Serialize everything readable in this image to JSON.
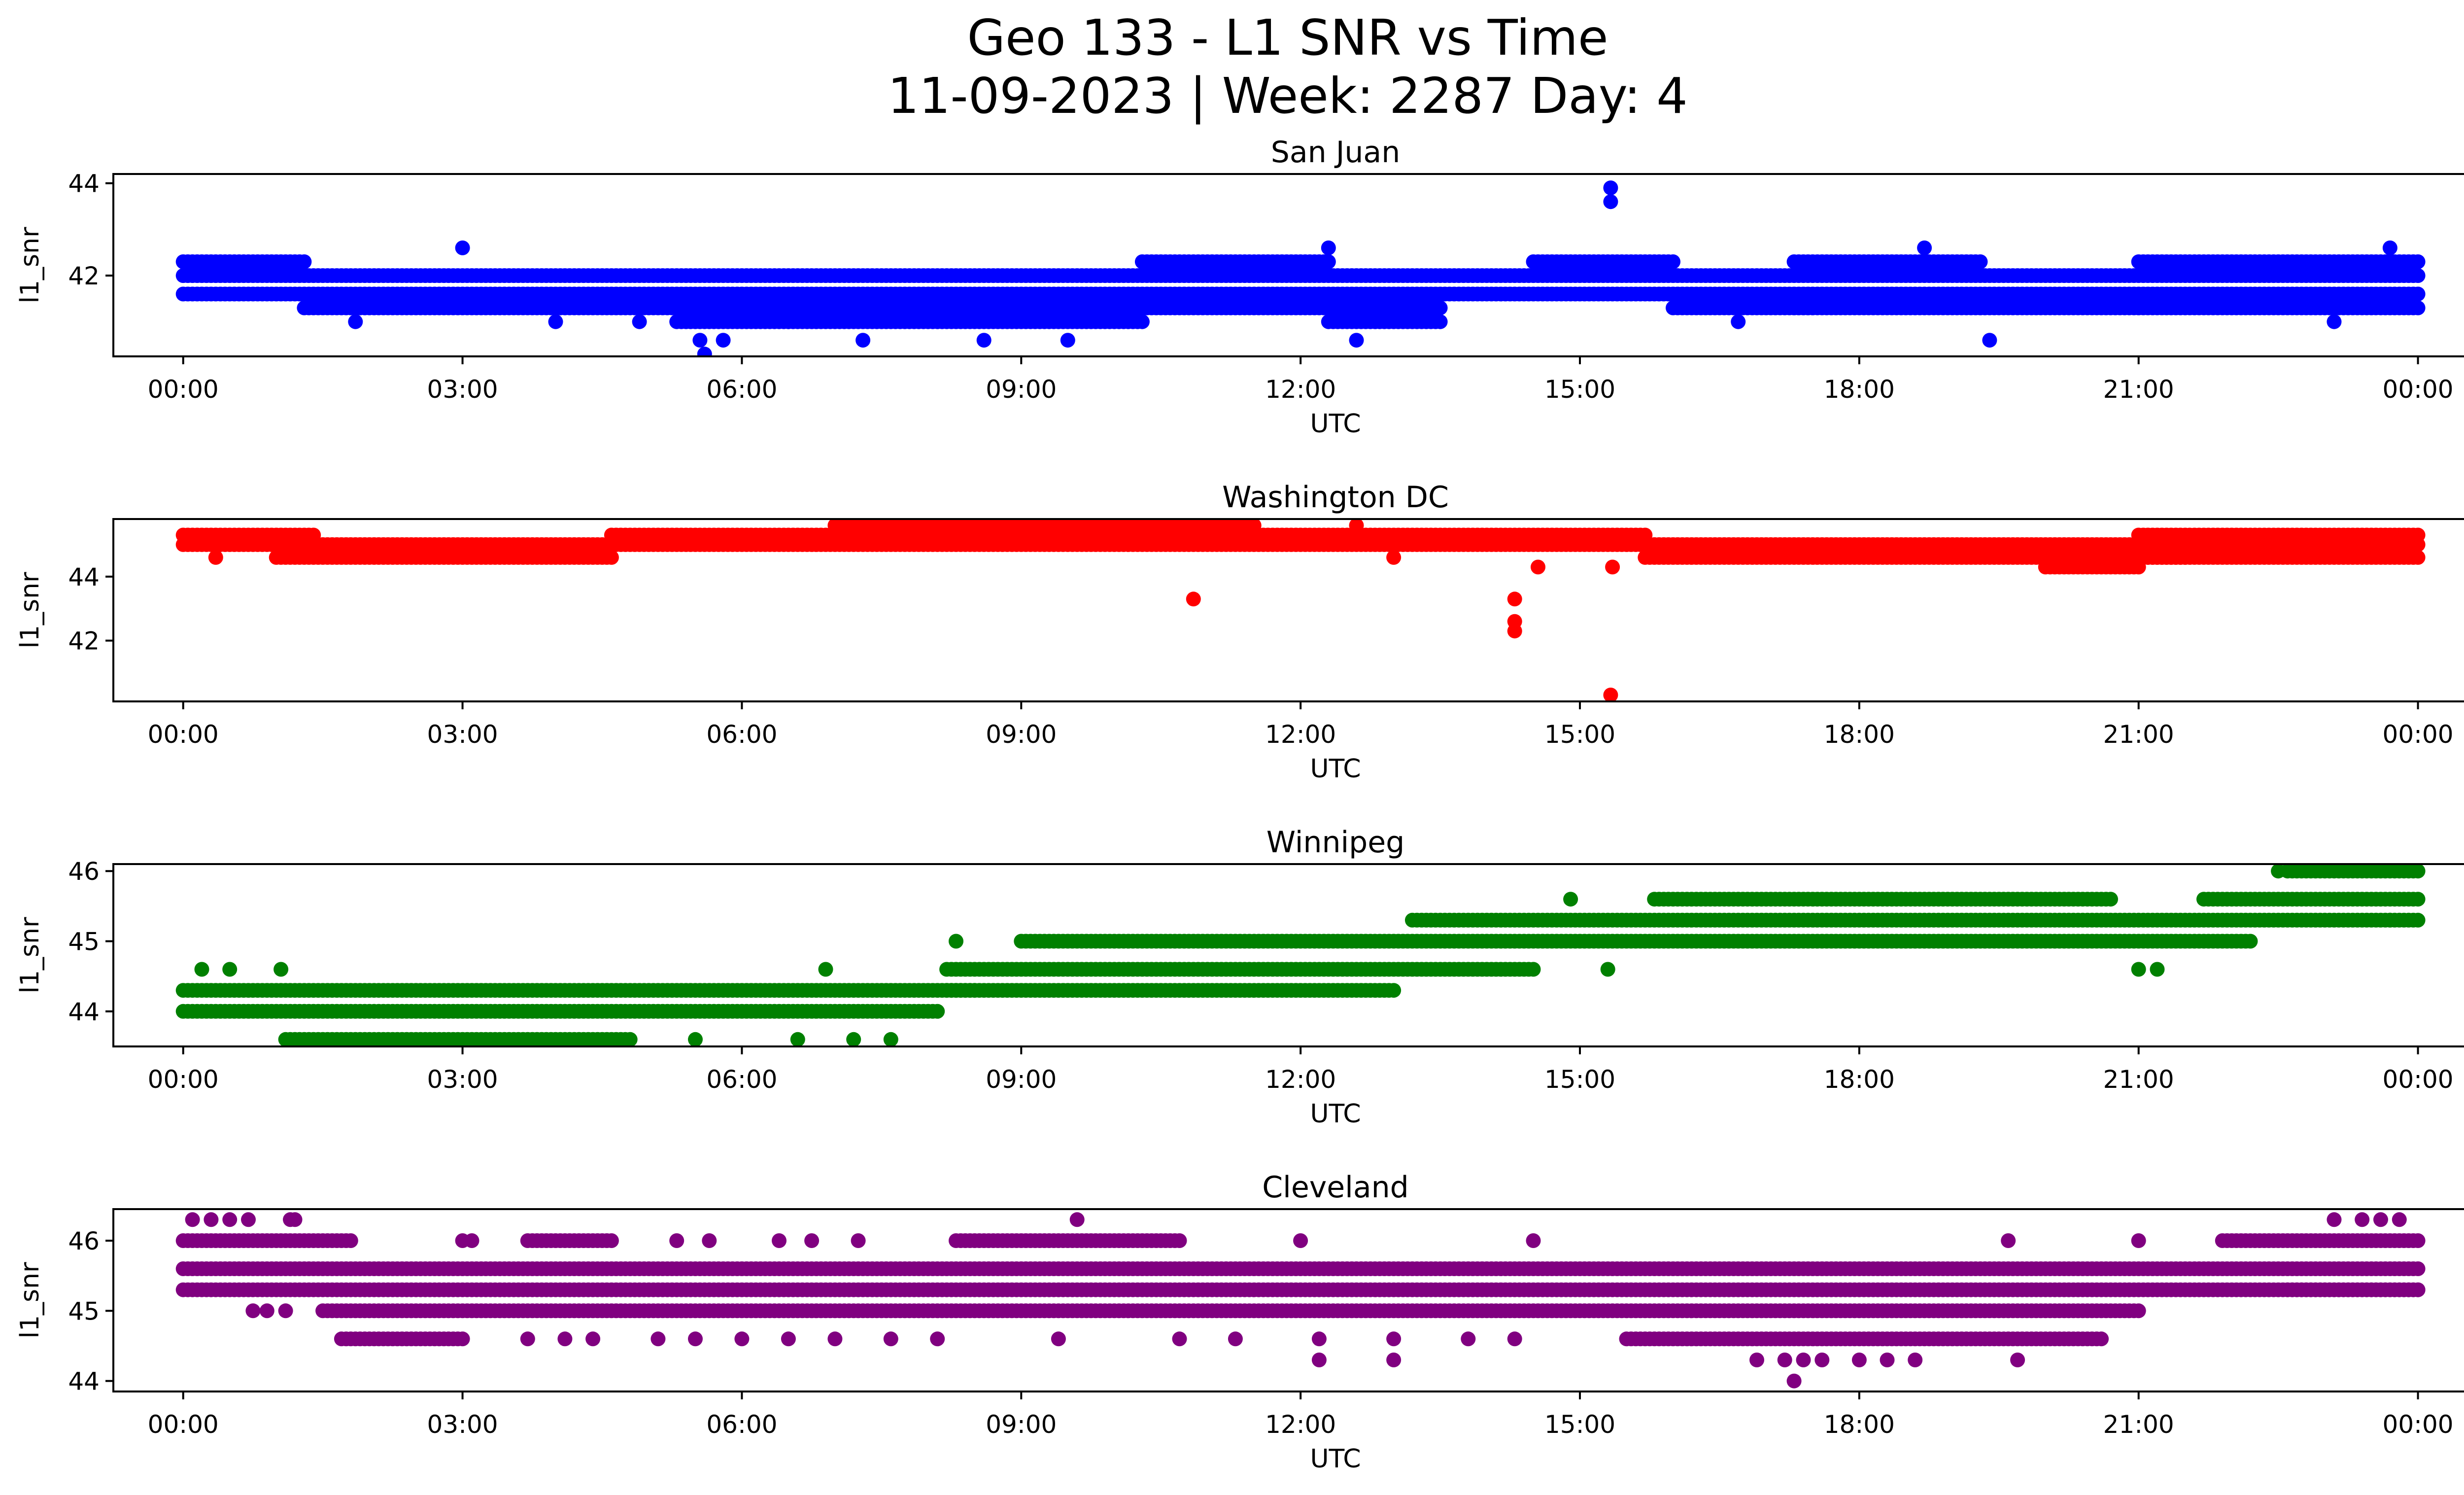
{
  "figure": {
    "title_line1": "Geo 133 - L1 SNR vs Time",
    "title_line2": "11-09-2023 | Week: 2287 Day: 4"
  },
  "chart_data": [
    {
      "type": "scatter",
      "title": "San Juan",
      "xlabel": "UTC",
      "ylabel": "l1_snr",
      "color": "#0000ff",
      "x_ticks": [
        "00:00",
        "03:00",
        "06:00",
        "09:00",
        "12:00",
        "15:00",
        "18:00",
        "21:00",
        "00:00"
      ],
      "xlim": [
        -0.75,
        25.5
      ],
      "y_ticks": [
        42,
        44
      ],
      "ylim": [
        40.25,
        44.2
      ],
      "levels": [
        41.3,
        41.6,
        42.0,
        42.3
      ],
      "bands": [
        {
          "t0": 0.0,
          "t1": 24.0,
          "y": [
            41.6,
            42.0
          ]
        },
        {
          "t0": 0.0,
          "t1": 1.3,
          "y": [
            42.3
          ]
        },
        {
          "t0": 1.3,
          "t1": 5.3,
          "y": [
            41.3
          ]
        },
        {
          "t0": 5.3,
          "t1": 6.5,
          "y": [
            41.0,
            41.3
          ]
        },
        {
          "t0": 6.5,
          "t1": 10.3,
          "y": [
            41.3,
            41.0
          ]
        },
        {
          "t0": 10.3,
          "t1": 12.3,
          "y": [
            41.3,
            42.3
          ]
        },
        {
          "t0": 12.3,
          "t1": 13.5,
          "y": [
            41.3,
            41.0
          ]
        },
        {
          "t0": 14.5,
          "t1": 16.0,
          "y": [
            42.3
          ]
        },
        {
          "t0": 16.0,
          "t1": 17.5,
          "y": [
            41.3
          ]
        },
        {
          "t0": 17.3,
          "t1": 19.3,
          "y": [
            42.3,
            41.3
          ]
        },
        {
          "t0": 19.3,
          "t1": 21.0,
          "y": [
            41.3
          ]
        },
        {
          "t0": 21.0,
          "t1": 24.0,
          "y": [
            41.3,
            42.3
          ]
        }
      ],
      "points": [
        {
          "x": 15.33,
          "y": 43.9
        },
        {
          "x": 15.33,
          "y": 43.6
        },
        {
          "x": 5.6,
          "y": 40.3
        },
        {
          "x": 5.55,
          "y": 40.6
        },
        {
          "x": 5.8,
          "y": 40.6
        },
        {
          "x": 3.0,
          "y": 42.6
        },
        {
          "x": 12.3,
          "y": 42.6
        },
        {
          "x": 18.7,
          "y": 42.6
        },
        {
          "x": 23.7,
          "y": 42.6
        },
        {
          "x": 19.4,
          "y": 40.6
        },
        {
          "x": 12.6,
          "y": 40.6
        },
        {
          "x": 7.3,
          "y": 40.6
        },
        {
          "x": 8.6,
          "y": 40.6
        },
        {
          "x": 9.5,
          "y": 40.6
        },
        {
          "x": 1.85,
          "y": 41.0
        },
        {
          "x": 4.0,
          "y": 41.0
        },
        {
          "x": 4.9,
          "y": 41.0
        },
        {
          "x": 16.7,
          "y": 41.0
        },
        {
          "x": 23.1,
          "y": 41.0
        }
      ]
    },
    {
      "type": "scatter",
      "title": "Washington DC",
      "xlabel": "UTC",
      "ylabel": "l1_snr",
      "color": "#ff0000",
      "x_ticks": [
        "00:00",
        "03:00",
        "06:00",
        "09:00",
        "12:00",
        "15:00",
        "18:00",
        "21:00",
        "00:00"
      ],
      "xlim": [
        -0.75,
        25.5
      ],
      "y_ticks": [
        42,
        44
      ],
      "ylim": [
        40.1,
        45.8
      ],
      "levels": [
        44.6,
        45.0,
        45.3,
        45.6
      ],
      "bands": [
        {
          "t0": 0.0,
          "t1": 24.0,
          "y": [
            45.0
          ]
        },
        {
          "t0": 0.0,
          "t1": 1.4,
          "y": [
            45.3
          ]
        },
        {
          "t0": 1.0,
          "t1": 4.6,
          "y": [
            44.6
          ]
        },
        {
          "t0": 4.6,
          "t1": 8.0,
          "y": [
            45.3
          ]
        },
        {
          "t0": 7.0,
          "t1": 11.5,
          "y": [
            45.6,
            45.3
          ]
        },
        {
          "t0": 11.5,
          "t1": 15.7,
          "y": [
            45.3
          ]
        },
        {
          "t0": 15.7,
          "t1": 21.5,
          "y": [
            44.6
          ]
        },
        {
          "t0": 20.0,
          "t1": 21.0,
          "y": [
            44.3
          ]
        },
        {
          "t0": 21.0,
          "t1": 24.0,
          "y": [
            45.3,
            44.6
          ]
        }
      ],
      "points": [
        {
          "x": 10.85,
          "y": 43.3
        },
        {
          "x": 14.3,
          "y": 43.3
        },
        {
          "x": 14.3,
          "y": 42.6
        },
        {
          "x": 14.3,
          "y": 42.3
        },
        {
          "x": 15.33,
          "y": 40.3
        },
        {
          "x": 14.55,
          "y": 44.3
        },
        {
          "x": 15.35,
          "y": 44.3
        },
        {
          "x": 13.0,
          "y": 44.6
        },
        {
          "x": 0.35,
          "y": 44.6
        },
        {
          "x": 8.0,
          "y": 45.6
        },
        {
          "x": 12.6,
          "y": 45.6
        }
      ]
    },
    {
      "type": "scatter",
      "title": "Winnipeg",
      "xlabel": "UTC",
      "ylabel": "l1_snr",
      "color": "#008000",
      "x_ticks": [
        "00:00",
        "03:00",
        "06:00",
        "09:00",
        "12:00",
        "15:00",
        "18:00",
        "21:00",
        "00:00"
      ],
      "xlim": [
        -0.75,
        25.5
      ],
      "y_ticks": [
        44,
        45,
        46
      ],
      "ylim": [
        43.5,
        46.1
      ],
      "levels": [
        43.6,
        44.0,
        44.3,
        44.6,
        45.0,
        45.3,
        45.6,
        46.0
      ],
      "bands": [
        {
          "t0": 0.0,
          "t1": 8.1,
          "y": [
            44.0
          ]
        },
        {
          "t0": 0.0,
          "t1": 8.5,
          "y": [
            44.3
          ]
        },
        {
          "t0": 1.1,
          "t1": 4.8,
          "y": [
            43.6
          ]
        },
        {
          "t0": 8.2,
          "t1": 13.0,
          "y": [
            44.3
          ]
        },
        {
          "t0": 8.2,
          "t1": 14.5,
          "y": [
            44.6
          ]
        },
        {
          "t0": 9.0,
          "t1": 22.2,
          "y": [
            45.0
          ]
        },
        {
          "t0": 13.2,
          "t1": 24.0,
          "y": [
            45.3
          ]
        },
        {
          "t0": 15.8,
          "t1": 20.7,
          "y": [
            45.6
          ]
        },
        {
          "t0": 21.7,
          "t1": 24.0,
          "y": [
            45.6
          ]
        },
        {
          "t0": 22.6,
          "t1": 24.0,
          "y": [
            46.0
          ]
        }
      ],
      "points": [
        {
          "x": 0.2,
          "y": 44.6
        },
        {
          "x": 0.5,
          "y": 44.6
        },
        {
          "x": 1.05,
          "y": 44.6
        },
        {
          "x": 6.9,
          "y": 44.6
        },
        {
          "x": 8.3,
          "y": 45.0
        },
        {
          "x": 14.9,
          "y": 45.6
        },
        {
          "x": 15.3,
          "y": 44.6
        },
        {
          "x": 21.0,
          "y": 44.6
        },
        {
          "x": 21.2,
          "y": 44.6
        },
        {
          "x": 23.7,
          "y": 45.3
        },
        {
          "x": 5.5,
          "y": 43.6
        },
        {
          "x": 6.6,
          "y": 43.6
        },
        {
          "x": 7.2,
          "y": 43.6
        },
        {
          "x": 7.6,
          "y": 43.6
        },
        {
          "x": 22.5,
          "y": 46.0
        }
      ]
    },
    {
      "type": "scatter",
      "title": "Cleveland",
      "xlabel": "UTC",
      "ylabel": "l1_snr",
      "color": "#800080",
      "x_ticks": [
        "00:00",
        "03:00",
        "06:00",
        "09:00",
        "12:00",
        "15:00",
        "18:00",
        "21:00",
        "00:00"
      ],
      "xlim": [
        -0.75,
        25.5
      ],
      "y_ticks": [
        44,
        45,
        46
      ],
      "ylim": [
        43.85,
        46.45
      ],
      "levels": [
        44.0,
        44.3,
        44.6,
        45.0,
        45.3,
        45.6,
        46.0,
        46.3
      ],
      "bands": [
        {
          "t0": 0.0,
          "t1": 24.0,
          "y": [
            45.3,
            45.6
          ]
        },
        {
          "t0": 0.0,
          "t1": 1.8,
          "y": [
            46.0
          ]
        },
        {
          "t0": 1.5,
          "t1": 21.0,
          "y": [
            45.0
          ]
        },
        {
          "t0": 1.7,
          "t1": 3.0,
          "y": [
            44.6
          ]
        },
        {
          "t0": 3.7,
          "t1": 4.6,
          "y": [
            46.0
          ]
        },
        {
          "t0": 8.3,
          "t1": 10.7,
          "y": [
            46.0
          ]
        },
        {
          "t0": 15.5,
          "t1": 20.6,
          "y": [
            44.6
          ]
        },
        {
          "t0": 21.9,
          "t1": 24.0,
          "y": [
            46.0
          ]
        },
        {
          "t0": 22.6,
          "t1": 24.0,
          "y": [
            45.3
          ]
        }
      ],
      "points": [
        {
          "x": 0.1,
          "y": 46.3
        },
        {
          "x": 0.3,
          "y": 46.3
        },
        {
          "x": 0.5,
          "y": 46.3
        },
        {
          "x": 0.7,
          "y": 46.3
        },
        {
          "x": 1.15,
          "y": 46.3
        },
        {
          "x": 1.2,
          "y": 46.3
        },
        {
          "x": 9.6,
          "y": 46.3
        },
        {
          "x": 23.1,
          "y": 46.3
        },
        {
          "x": 23.4,
          "y": 46.3
        },
        {
          "x": 23.6,
          "y": 46.3
        },
        {
          "x": 23.8,
          "y": 46.3
        },
        {
          "x": 0.75,
          "y": 45.0
        },
        {
          "x": 0.9,
          "y": 45.0
        },
        {
          "x": 1.1,
          "y": 45.0
        },
        {
          "x": 3.0,
          "y": 46.0
        },
        {
          "x": 3.1,
          "y": 46.0
        },
        {
          "x": 5.3,
          "y": 46.0
        },
        {
          "x": 5.65,
          "y": 46.0
        },
        {
          "x": 6.4,
          "y": 46.0
        },
        {
          "x": 6.75,
          "y": 46.0
        },
        {
          "x": 7.25,
          "y": 46.0
        },
        {
          "x": 12.0,
          "y": 46.0
        },
        {
          "x": 14.5,
          "y": 46.0
        },
        {
          "x": 19.6,
          "y": 46.0
        },
        {
          "x": 21.0,
          "y": 46.0
        },
        {
          "x": 12.2,
          "y": 44.3
        },
        {
          "x": 13.0,
          "y": 44.3
        },
        {
          "x": 16.9,
          "y": 44.3
        },
        {
          "x": 17.2,
          "y": 44.3
        },
        {
          "x": 17.4,
          "y": 44.3
        },
        {
          "x": 17.6,
          "y": 44.3
        },
        {
          "x": 18.0,
          "y": 44.3
        },
        {
          "x": 18.3,
          "y": 44.3
        },
        {
          "x": 18.6,
          "y": 44.3
        },
        {
          "x": 19.7,
          "y": 44.3
        },
        {
          "x": 17.3,
          "y": 44.0
        },
        {
          "x": 3.7,
          "y": 44.6
        },
        {
          "x": 4.1,
          "y": 44.6
        },
        {
          "x": 4.4,
          "y": 44.6
        },
        {
          "x": 5.1,
          "y": 44.6
        },
        {
          "x": 5.5,
          "y": 44.6
        },
        {
          "x": 6.0,
          "y": 44.6
        },
        {
          "x": 6.5,
          "y": 44.6
        },
        {
          "x": 7.0,
          "y": 44.6
        },
        {
          "x": 7.6,
          "y": 44.6
        },
        {
          "x": 8.1,
          "y": 44.6
        },
        {
          "x": 9.4,
          "y": 44.6
        },
        {
          "x": 10.7,
          "y": 44.6
        },
        {
          "x": 11.3,
          "y": 44.6
        },
        {
          "x": 12.2,
          "y": 44.6
        },
        {
          "x": 13.0,
          "y": 44.6
        },
        {
          "x": 13.8,
          "y": 44.6
        },
        {
          "x": 14.3,
          "y": 44.6
        }
      ]
    }
  ]
}
